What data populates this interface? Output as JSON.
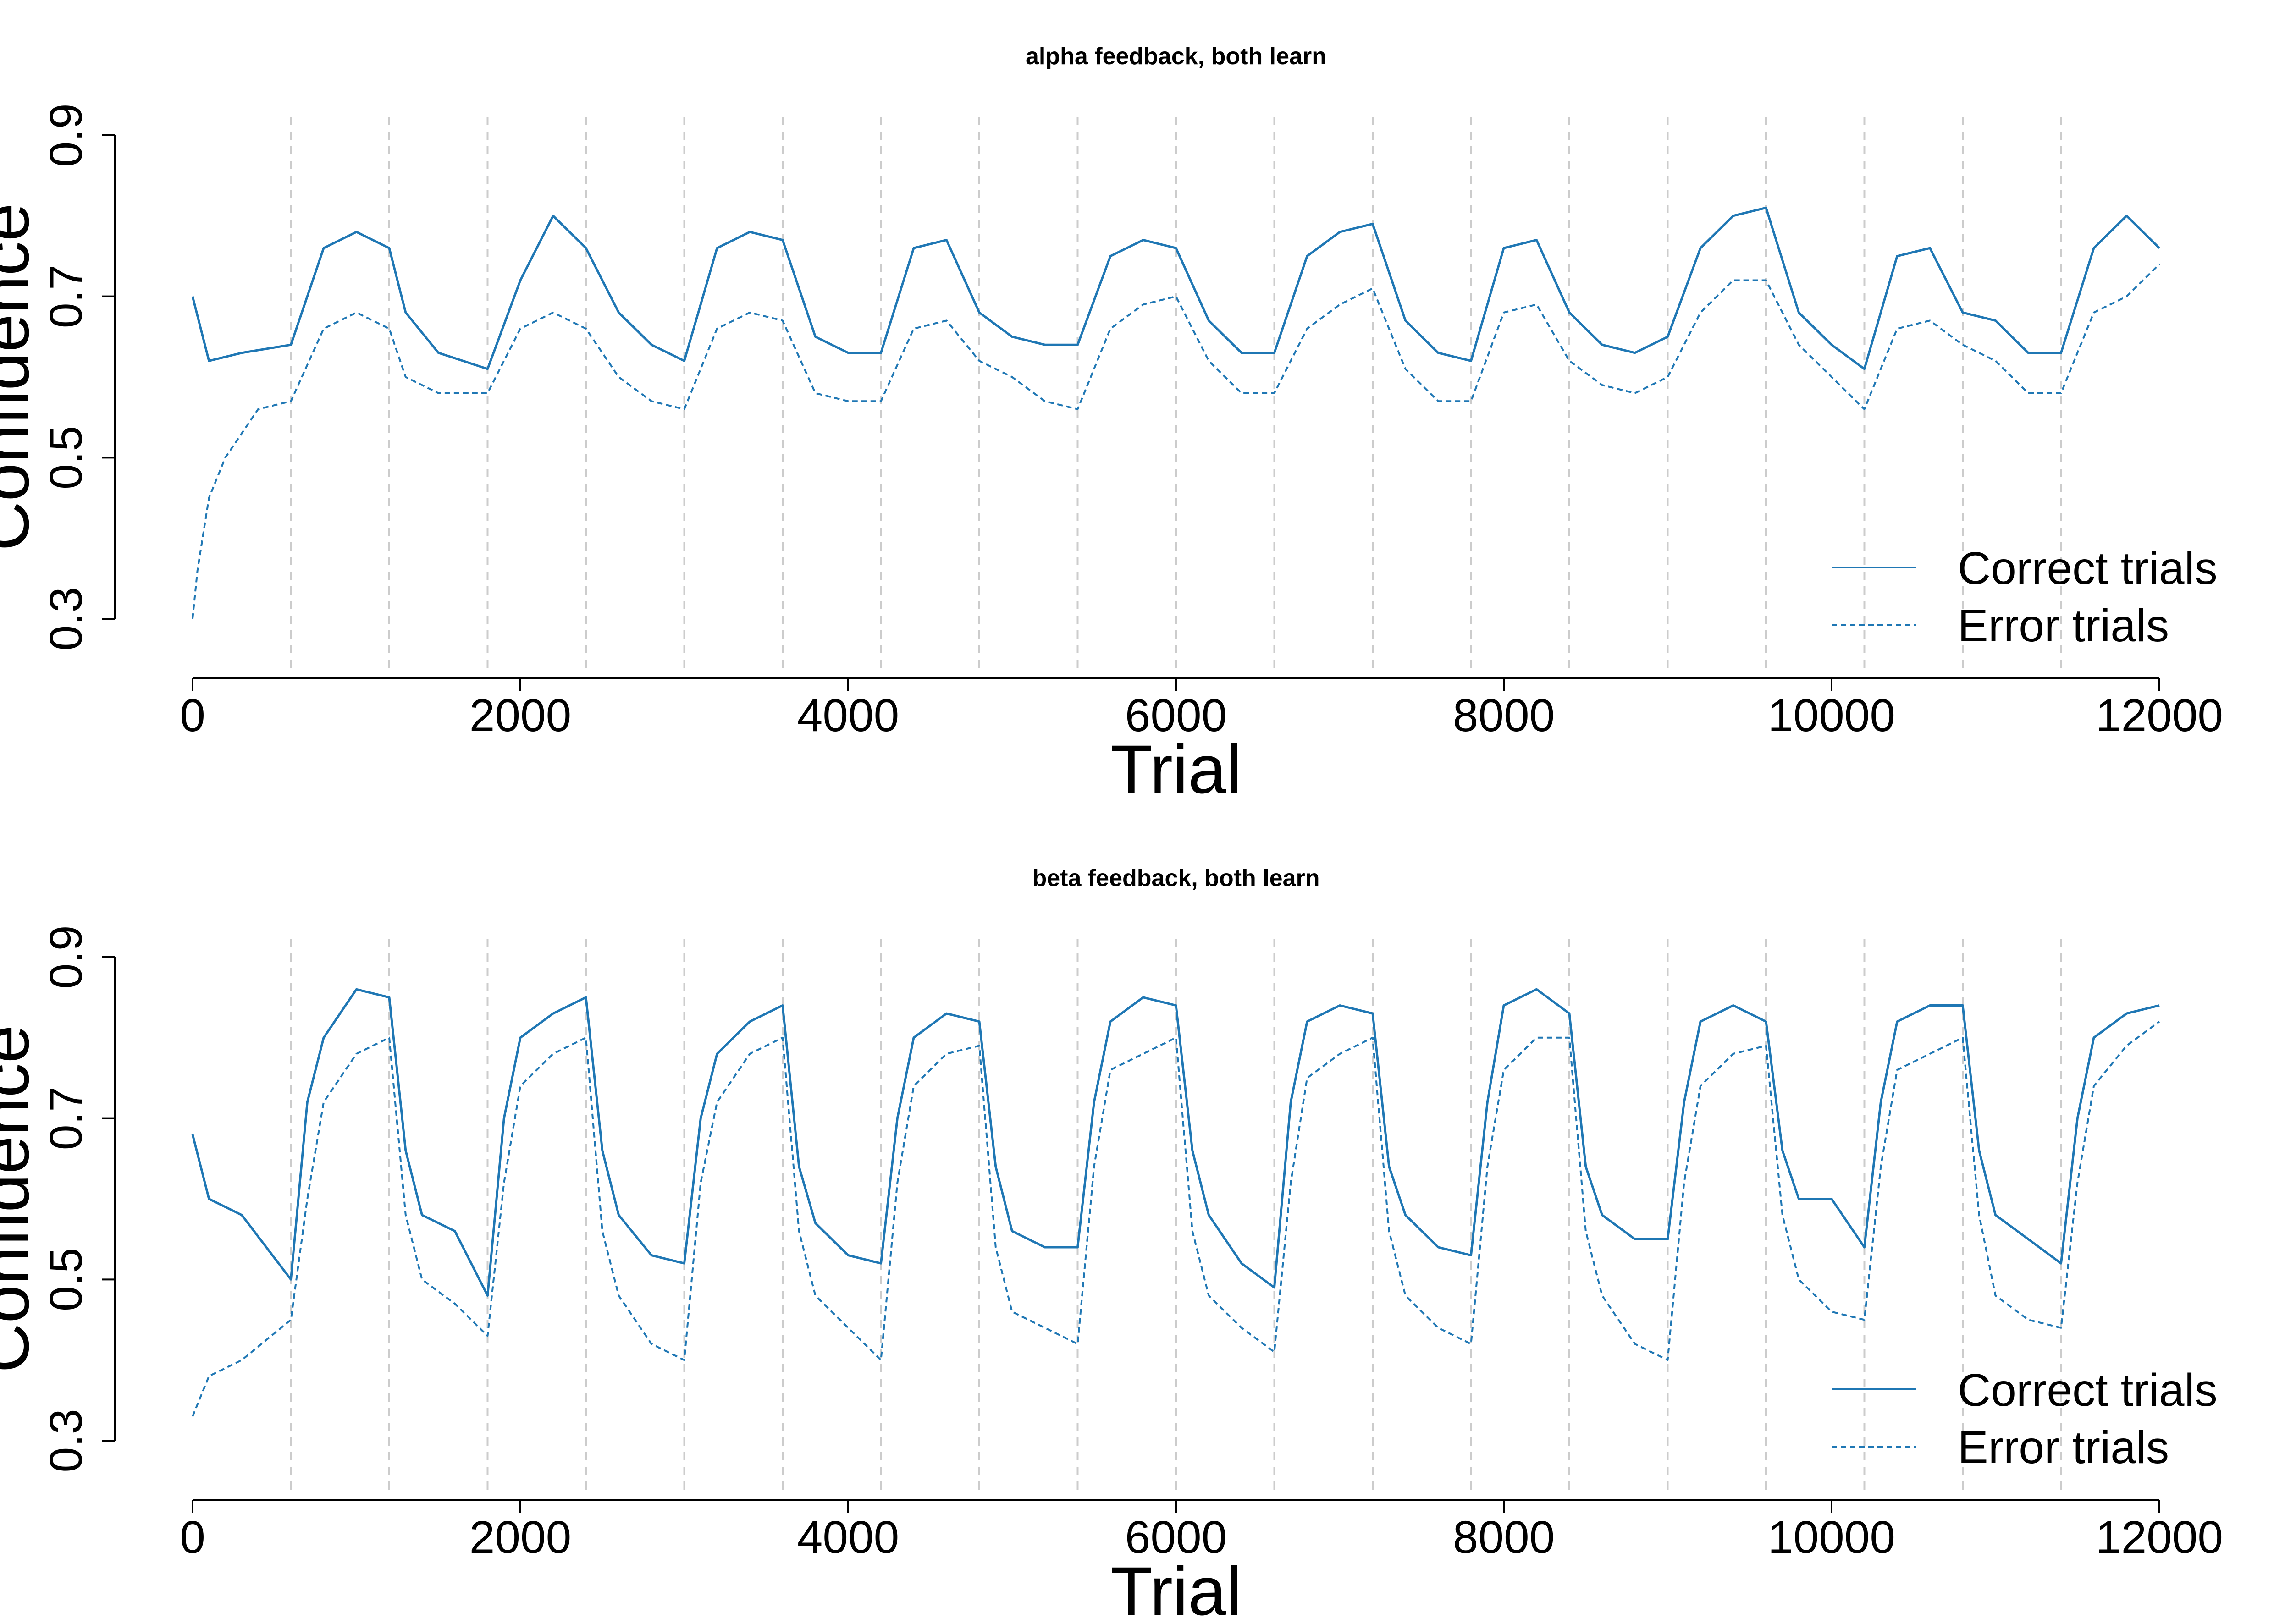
{
  "chart_data": [
    {
      "type": "line",
      "title": "alpha feedback,  both learn",
      "xlabel": "Trial",
      "ylabel": "Confidence",
      "xlim": [
        0,
        12000
      ],
      "ylim": [
        0.25,
        0.92
      ],
      "xticks": [
        0,
        2000,
        4000,
        6000,
        8000,
        10000,
        12000
      ],
      "xtick_labels": [
        "0",
        "2000",
        "4000",
        "6000",
        "8000",
        "10000",
        "12000"
      ],
      "yticks": [
        0.3,
        0.5,
        0.7,
        0.9
      ],
      "ytick_labels": [
        "0.3",
        "0.5",
        "0.7",
        "0.9"
      ],
      "vlines": [
        600,
        1200,
        1800,
        2400,
        3000,
        3600,
        4200,
        4800,
        5400,
        6000,
        6600,
        7200,
        7800,
        8400,
        9000,
        9600,
        10200,
        10800,
        11400
      ],
      "grid": false,
      "legend_position": "bottom-right",
      "series_color": "#1f77b4",
      "series": [
        {
          "name": "Correct trials",
          "style": "solid",
          "x": [
            0,
            100,
            300,
            600,
            800,
            1000,
            1200,
            1300,
            1500,
            1800,
            2000,
            2200,
            2400,
            2600,
            2800,
            3000,
            3200,
            3400,
            3600,
            3800,
            4000,
            4200,
            4400,
            4600,
            4800,
            5000,
            5200,
            5400,
            5600,
            5800,
            6000,
            6200,
            6400,
            6600,
            6800,
            7000,
            7200,
            7400,
            7600,
            7800,
            8000,
            8200,
            8400,
            8600,
            8800,
            9000,
            9200,
            9400,
            9600,
            9800,
            10000,
            10200,
            10400,
            10600,
            10800,
            11000,
            11200,
            11400,
            11600,
            11800,
            12000
          ],
          "y": [
            0.7,
            0.62,
            0.63,
            0.64,
            0.76,
            0.78,
            0.76,
            0.68,
            0.63,
            0.61,
            0.72,
            0.8,
            0.76,
            0.68,
            0.64,
            0.62,
            0.76,
            0.78,
            0.77,
            0.65,
            0.63,
            0.63,
            0.76,
            0.77,
            0.68,
            0.65,
            0.64,
            0.64,
            0.75,
            0.77,
            0.76,
            0.67,
            0.63,
            0.63,
            0.75,
            0.78,
            0.79,
            0.67,
            0.63,
            0.62,
            0.76,
            0.77,
            0.68,
            0.64,
            0.63,
            0.65,
            0.76,
            0.8,
            0.81,
            0.68,
            0.64,
            0.61,
            0.75,
            0.76,
            0.68,
            0.67,
            0.63,
            0.63,
            0.76,
            0.8,
            0.76
          ]
        },
        {
          "name": "Error trials",
          "style": "dashed",
          "x": [
            0,
            30,
            100,
            200,
            400,
            600,
            800,
            1000,
            1200,
            1300,
            1500,
            1800,
            2000,
            2200,
            2400,
            2600,
            2800,
            3000,
            3200,
            3400,
            3600,
            3800,
            4000,
            4200,
            4400,
            4600,
            4800,
            5000,
            5200,
            5400,
            5600,
            5800,
            6000,
            6200,
            6400,
            6600,
            6800,
            7000,
            7200,
            7400,
            7600,
            7800,
            8000,
            8200,
            8400,
            8600,
            8800,
            9000,
            9200,
            9400,
            9600,
            9800,
            10000,
            10200,
            10400,
            10600,
            10800,
            11000,
            11200,
            11400,
            11600,
            11800,
            12000
          ],
          "y": [
            0.3,
            0.36,
            0.45,
            0.5,
            0.56,
            0.57,
            0.66,
            0.68,
            0.66,
            0.6,
            0.58,
            0.58,
            0.66,
            0.68,
            0.66,
            0.6,
            0.57,
            0.56,
            0.66,
            0.68,
            0.67,
            0.58,
            0.57,
            0.57,
            0.66,
            0.67,
            0.62,
            0.6,
            0.57,
            0.56,
            0.66,
            0.69,
            0.7,
            0.62,
            0.58,
            0.58,
            0.66,
            0.69,
            0.71,
            0.61,
            0.57,
            0.57,
            0.68,
            0.69,
            0.62,
            0.59,
            0.58,
            0.6,
            0.68,
            0.72,
            0.72,
            0.64,
            0.6,
            0.56,
            0.66,
            0.67,
            0.64,
            0.62,
            0.58,
            0.58,
            0.68,
            0.7,
            0.74
          ]
        }
      ]
    },
    {
      "type": "line",
      "title": "beta feedback, both learn",
      "xlabel": "Trial",
      "ylabel": "Confidence",
      "xlim": [
        0,
        12000
      ],
      "ylim": [
        0.25,
        0.92
      ],
      "xticks": [
        0,
        2000,
        4000,
        6000,
        8000,
        10000,
        12000
      ],
      "xtick_labels": [
        "0",
        "2000",
        "4000",
        "6000",
        "8000",
        "10000",
        "12000"
      ],
      "yticks": [
        0.3,
        0.5,
        0.7,
        0.9
      ],
      "ytick_labels": [
        "0.3",
        "0.5",
        "0.7",
        "0.9"
      ],
      "vlines": [
        600,
        1200,
        1800,
        2400,
        3000,
        3600,
        4200,
        4800,
        5400,
        6000,
        6600,
        7200,
        7800,
        8400,
        9000,
        9600,
        10200,
        10800,
        11400
      ],
      "grid": false,
      "legend_position": "bottom-right",
      "series_color": "#1f77b4",
      "series": [
        {
          "name": "Correct trials",
          "style": "solid",
          "x": [
            0,
            100,
            300,
            600,
            700,
            800,
            1000,
            1200,
            1300,
            1400,
            1600,
            1800,
            1900,
            2000,
            2200,
            2400,
            2500,
            2600,
            2800,
            3000,
            3100,
            3200,
            3400,
            3600,
            3700,
            3800,
            4000,
            4200,
            4300,
            4400,
            4600,
            4800,
            4900,
            5000,
            5200,
            5400,
            5500,
            5600,
            5800,
            6000,
            6100,
            6200,
            6400,
            6600,
            6700,
            6800,
            7000,
            7200,
            7300,
            7400,
            7600,
            7800,
            7900,
            8000,
            8200,
            8400,
            8500,
            8600,
            8800,
            9000,
            9100,
            9200,
            9400,
            9600,
            9700,
            9800,
            10000,
            10200,
            10300,
            10400,
            10600,
            10800,
            10900,
            11000,
            11200,
            11400,
            11500,
            11600,
            11800,
            12000
          ],
          "y": [
            0.68,
            0.6,
            0.58,
            0.5,
            0.72,
            0.8,
            0.86,
            0.85,
            0.66,
            0.58,
            0.56,
            0.48,
            0.7,
            0.8,
            0.83,
            0.85,
            0.66,
            0.58,
            0.53,
            0.52,
            0.7,
            0.78,
            0.82,
            0.84,
            0.64,
            0.57,
            0.53,
            0.52,
            0.7,
            0.8,
            0.83,
            0.82,
            0.64,
            0.56,
            0.54,
            0.54,
            0.72,
            0.82,
            0.85,
            0.84,
            0.66,
            0.58,
            0.52,
            0.49,
            0.72,
            0.82,
            0.84,
            0.83,
            0.64,
            0.58,
            0.54,
            0.53,
            0.72,
            0.84,
            0.86,
            0.83,
            0.64,
            0.58,
            0.55,
            0.55,
            0.72,
            0.82,
            0.84,
            0.82,
            0.66,
            0.6,
            0.6,
            0.54,
            0.72,
            0.82,
            0.84,
            0.84,
            0.66,
            0.58,
            0.55,
            0.52,
            0.7,
            0.8,
            0.83,
            0.84
          ]
        },
        {
          "name": "Error trials",
          "style": "dashed",
          "x": [
            0,
            100,
            300,
            600,
            700,
            800,
            1000,
            1200,
            1300,
            1400,
            1600,
            1800,
            1900,
            2000,
            2200,
            2400,
            2500,
            2600,
            2800,
            3000,
            3100,
            3200,
            3400,
            3600,
            3700,
            3800,
            4000,
            4200,
            4300,
            4400,
            4600,
            4800,
            4900,
            5000,
            5200,
            5400,
            5500,
            5600,
            5800,
            6000,
            6100,
            6200,
            6400,
            6600,
            6700,
            6800,
            7000,
            7200,
            7300,
            7400,
            7600,
            7800,
            7900,
            8000,
            8200,
            8400,
            8500,
            8600,
            8800,
            9000,
            9100,
            9200,
            9400,
            9600,
            9700,
            9800,
            10000,
            10200,
            10300,
            10400,
            10600,
            10800,
            10900,
            11000,
            11200,
            11400,
            11500,
            11600,
            11800,
            12000
          ],
          "y": [
            0.33,
            0.38,
            0.4,
            0.45,
            0.6,
            0.72,
            0.78,
            0.8,
            0.58,
            0.5,
            0.47,
            0.43,
            0.62,
            0.74,
            0.78,
            0.8,
            0.56,
            0.48,
            0.42,
            0.4,
            0.62,
            0.72,
            0.78,
            0.8,
            0.56,
            0.48,
            0.44,
            0.4,
            0.62,
            0.74,
            0.78,
            0.79,
            0.54,
            0.46,
            0.44,
            0.42,
            0.64,
            0.76,
            0.78,
            0.8,
            0.56,
            0.48,
            0.44,
            0.41,
            0.62,
            0.75,
            0.78,
            0.8,
            0.56,
            0.48,
            0.44,
            0.42,
            0.64,
            0.76,
            0.8,
            0.8,
            0.56,
            0.48,
            0.42,
            0.4,
            0.62,
            0.74,
            0.78,
            0.79,
            0.58,
            0.5,
            0.46,
            0.45,
            0.64,
            0.76,
            0.78,
            0.8,
            0.58,
            0.48,
            0.45,
            0.44,
            0.62,
            0.74,
            0.79,
            0.82
          ]
        }
      ]
    }
  ]
}
